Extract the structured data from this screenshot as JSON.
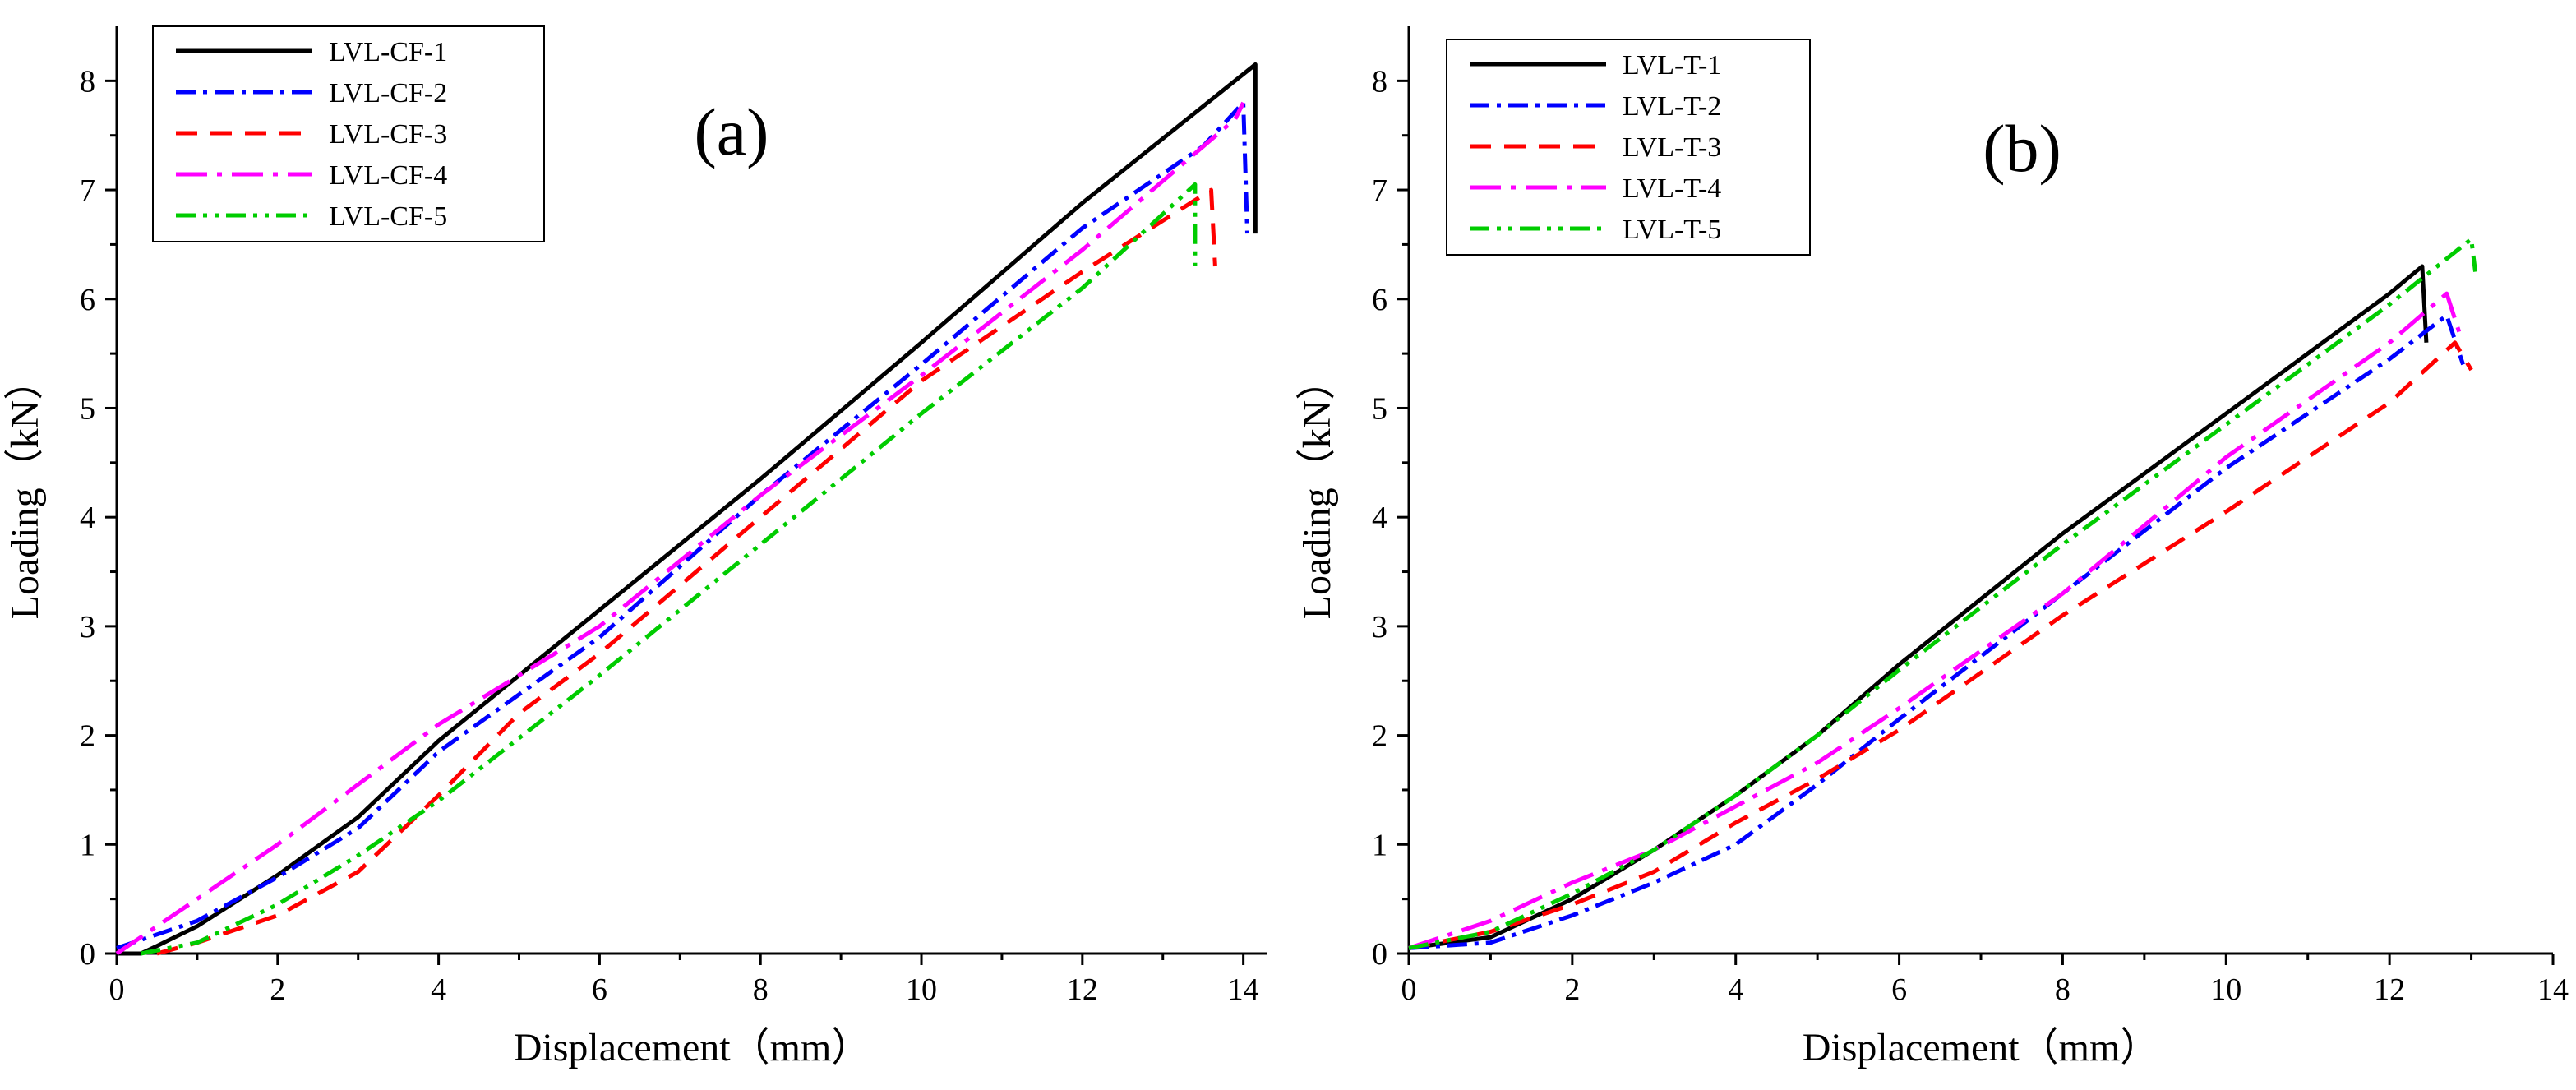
{
  "chart_data": [
    {
      "type": "line",
      "panel_label": "(a)",
      "xlabel": "Displacement（mm）",
      "ylabel": "Loading（kN）",
      "xlim": [
        0,
        14.3
      ],
      "ylim": [
        0,
        8.5
      ],
      "xticks": [
        0,
        2,
        4,
        6,
        8,
        10,
        12,
        14
      ],
      "yticks": [
        0,
        1,
        2,
        3,
        4,
        5,
        6,
        7,
        8
      ],
      "grid": false,
      "legend_position": "top-left",
      "series": [
        {
          "name": "LVL-CF-1",
          "color": "#000000",
          "dash": "solid",
          "x": [
            0,
            0.3,
            0.5,
            1.0,
            2.0,
            3.0,
            4.0,
            6.0,
            8.0,
            10.0,
            12.0,
            14.15,
            14.15
          ],
          "y": [
            0,
            0,
            0.07,
            0.25,
            0.72,
            1.25,
            1.95,
            3.15,
            4.35,
            5.6,
            6.88,
            8.15,
            6.6
          ]
        },
        {
          "name": "LVL-CF-2",
          "color": "#0000FF",
          "dash": "dashdot",
          "x": [
            0,
            1.0,
            2.0,
            3.0,
            4.0,
            6.0,
            8.0,
            10.0,
            12.0,
            13.5,
            14.0,
            14.05
          ],
          "y": [
            0.05,
            0.3,
            0.7,
            1.15,
            1.85,
            2.9,
            4.2,
            5.4,
            6.65,
            7.4,
            7.8,
            6.6
          ]
        },
        {
          "name": "LVL-CF-3",
          "color": "#FF0000",
          "dash": "dash",
          "x": [
            0.5,
            1.0,
            2.0,
            3.0,
            4.0,
            5.0,
            6.0,
            8.0,
            10.0,
            12.0,
            13.6,
            13.65
          ],
          "y": [
            0,
            0.1,
            0.35,
            0.75,
            1.45,
            2.2,
            2.75,
            4.0,
            5.25,
            6.25,
            7.0,
            6.3
          ]
        },
        {
          "name": "LVL-CF-4",
          "color": "#FF00FF",
          "dash": "longdashdot",
          "x": [
            0,
            1.0,
            2.0,
            3.0,
            4.0,
            5.0,
            6.0,
            8.0,
            10.0,
            12.0,
            13.9,
            14.0
          ],
          "y": [
            0,
            0.5,
            1.0,
            1.55,
            2.1,
            2.55,
            3.0,
            4.2,
            5.3,
            6.45,
            7.65,
            7.8
          ]
        },
        {
          "name": "LVL-CF-5",
          "color": "#00CC00",
          "dash": "dashdotdot",
          "x": [
            0.3,
            1.0,
            2.0,
            3.0,
            4.0,
            6.0,
            8.0,
            10.0,
            12.0,
            13.4,
            13.4
          ],
          "y": [
            0,
            0.1,
            0.45,
            0.9,
            1.4,
            2.55,
            3.75,
            4.95,
            6.1,
            7.05,
            6.3
          ]
        }
      ]
    },
    {
      "type": "line",
      "panel_label": "(b)",
      "xlabel": "Displacement（mm）",
      "ylabel": "Loading（kN）",
      "xlim": [
        0,
        14
      ],
      "ylim": [
        0,
        8.5
      ],
      "xticks": [
        0,
        2,
        4,
        6,
        8,
        10,
        12,
        14
      ],
      "yticks": [
        0,
        1,
        2,
        3,
        4,
        5,
        6,
        7,
        8
      ],
      "grid": false,
      "legend_position": "top-left",
      "series": [
        {
          "name": "LVL-T-1",
          "color": "#000000",
          "dash": "solid",
          "x": [
            0,
            1.0,
            2.0,
            3.0,
            4.0,
            5.0,
            6.0,
            8.0,
            10.0,
            12.0,
            12.4,
            12.45
          ],
          "y": [
            0.05,
            0.15,
            0.5,
            0.95,
            1.45,
            2.0,
            2.65,
            3.85,
            4.95,
            6.05,
            6.3,
            5.6
          ]
        },
        {
          "name": "LVL-T-2",
          "color": "#0000FF",
          "dash": "dashdot",
          "x": [
            0,
            1.0,
            2.0,
            3.0,
            4.0,
            5.0,
            6.0,
            8.0,
            10.0,
            12.0,
            12.7,
            12.9
          ],
          "y": [
            0.05,
            0.1,
            0.35,
            0.65,
            1.0,
            1.55,
            2.15,
            3.3,
            4.45,
            5.45,
            5.85,
            5.4
          ]
        },
        {
          "name": "LVL-T-3",
          "color": "#FF0000",
          "dash": "dash",
          "x": [
            0,
            1.0,
            2.0,
            3.0,
            4.0,
            5.0,
            6.0,
            8.0,
            10.0,
            12.0,
            12.8,
            13.0
          ],
          "y": [
            0.05,
            0.2,
            0.45,
            0.75,
            1.2,
            1.6,
            2.05,
            3.1,
            4.05,
            5.05,
            5.6,
            5.35
          ]
        },
        {
          "name": "LVL-T-4",
          "color": "#FF00FF",
          "dash": "longdashdot",
          "x": [
            0,
            1.0,
            2.0,
            3.0,
            4.0,
            5.0,
            6.0,
            8.0,
            10.0,
            12.0,
            12.7,
            12.85
          ],
          "y": [
            0.05,
            0.3,
            0.65,
            0.95,
            1.35,
            1.75,
            2.25,
            3.3,
            4.55,
            5.6,
            6.05,
            5.7
          ]
        },
        {
          "name": "LVL-T-5",
          "color": "#00CC00",
          "dash": "dashdotdot",
          "x": [
            0,
            1.0,
            2.0,
            3.0,
            4.0,
            5.0,
            6.0,
            8.0,
            10.0,
            12.0,
            13.0,
            13.05
          ],
          "y": [
            0.05,
            0.2,
            0.55,
            0.95,
            1.45,
            2.0,
            2.6,
            3.75,
            4.85,
            5.95,
            6.55,
            6.25
          ]
        }
      ]
    }
  ]
}
